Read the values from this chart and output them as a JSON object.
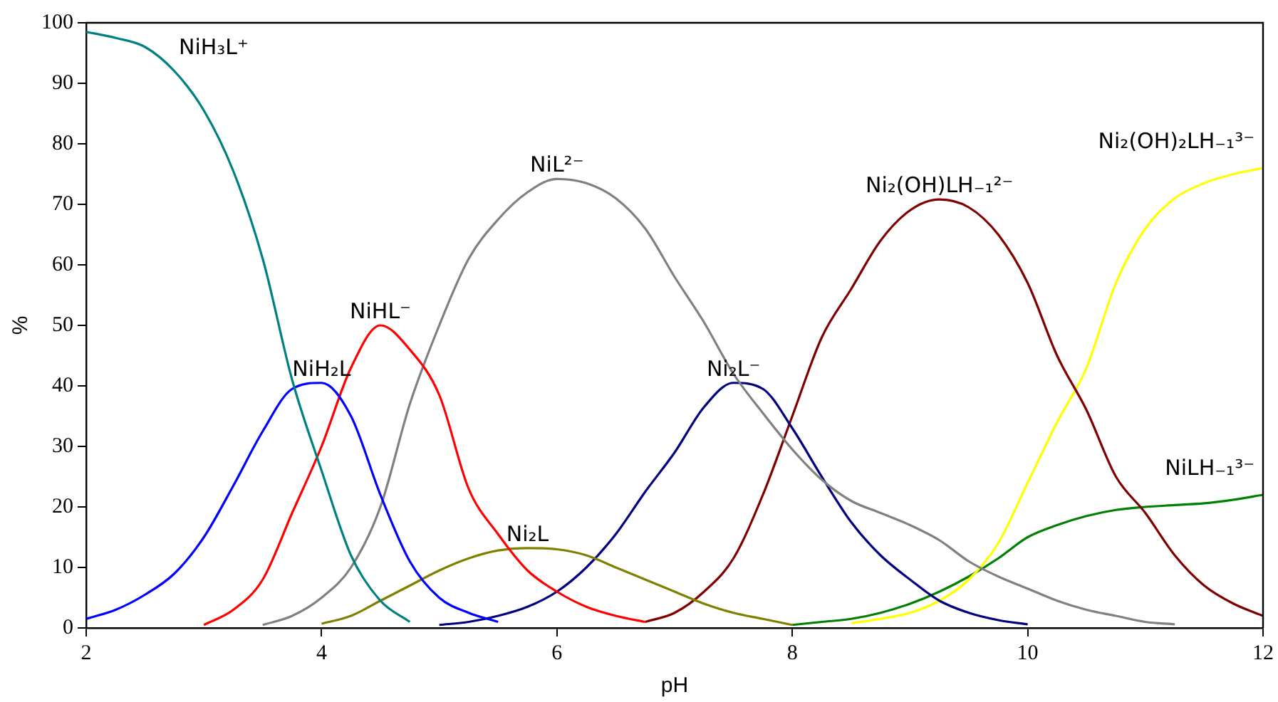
{
  "chart_data": {
    "type": "line",
    "xlabel": "pH",
    "ylabel": "%",
    "xlim": [
      2,
      12
    ],
    "ylim": [
      0,
      100
    ],
    "xticks": [
      2,
      4,
      6,
      8,
      10,
      12
    ],
    "yticks": [
      0,
      10,
      20,
      30,
      40,
      50,
      60,
      70,
      80,
      90,
      100
    ],
    "series": [
      {
        "name": "NiH₃L⁺",
        "color": "#008080",
        "x": [
          2,
          2.25,
          2.5,
          2.75,
          3,
          3.25,
          3.5,
          3.75,
          4,
          4.25,
          4.5,
          4.75
        ],
        "values": [
          98.5,
          97.5,
          96,
          92,
          85.5,
          75.5,
          61,
          41,
          26,
          12,
          4.5,
          1
        ]
      },
      {
        "name": "NiH₂L",
        "color": "#0000ff",
        "x": [
          2,
          2.25,
          2.5,
          2.75,
          3,
          3.25,
          3.5,
          3.75,
          4,
          4.25,
          4.5,
          4.75,
          5,
          5.25,
          5.5
        ],
        "values": [
          1.5,
          3,
          5.5,
          9,
          15,
          23.5,
          32.5,
          39.5,
          40.5,
          35,
          22,
          11,
          5,
          2.5,
          1
        ]
      },
      {
        "name": "NiHL⁻",
        "color": "#ff0000",
        "x": [
          3,
          3.25,
          3.5,
          3.75,
          4,
          4.25,
          4.5,
          4.75,
          5,
          5.25,
          5.5,
          5.75,
          6,
          6.25,
          6.5,
          6.75
        ],
        "values": [
          0.5,
          3,
          8,
          19,
          30,
          43,
          50,
          46,
          38.5,
          23,
          15.5,
          9.5,
          6,
          3.5,
          2,
          1
        ]
      },
      {
        "name": "NiL²⁻",
        "color": "#808080",
        "x": [
          3.5,
          3.75,
          4,
          4.25,
          4.5,
          4.75,
          5,
          5.25,
          5.5,
          5.75,
          6,
          6.25,
          6.5,
          6.75,
          7,
          7.25,
          7.5,
          7.75,
          8,
          8.25,
          8.5,
          8.75,
          9,
          9.25,
          9.5,
          9.75,
          10,
          10.25,
          10.5,
          10.75,
          11,
          11.25
        ],
        "values": [
          0.5,
          2,
          5,
          10,
          20,
          37,
          50,
          61,
          67.5,
          72,
          74.2,
          73.5,
          71,
          66,
          58,
          50.5,
          42,
          35.5,
          29.5,
          24.5,
          21,
          19,
          17,
          14.5,
          11,
          8.5,
          6.5,
          4.5,
          3,
          2,
          1,
          0.6
        ]
      },
      {
        "name": "Ni₂L",
        "color": "#808000",
        "x": [
          4,
          4.25,
          4.5,
          4.75,
          5,
          5.25,
          5.5,
          5.75,
          6,
          6.25,
          6.5,
          6.75,
          7,
          7.25,
          7.5,
          7.75,
          8
        ],
        "values": [
          0.7,
          2,
          4.5,
          7,
          9.5,
          11.5,
          12.8,
          13.2,
          13,
          12,
          10,
          8,
          6,
          4,
          2.5,
          1.5,
          0.5
        ]
      },
      {
        "name": "Ni₂L⁻",
        "color": "#000080",
        "x": [
          5,
          5.25,
          5.5,
          5.75,
          6,
          6.25,
          6.5,
          6.75,
          7,
          7.25,
          7.5,
          7.75,
          8,
          8.25,
          8.5,
          8.75,
          9,
          9.25,
          9.5,
          9.75,
          10
        ],
        "values": [
          0.5,
          1,
          2,
          3.5,
          6,
          10,
          15.5,
          22.5,
          29,
          36.5,
          40.5,
          39.5,
          33,
          25,
          17.5,
          12,
          8,
          4.5,
          2.5,
          1.3,
          0.6
        ]
      },
      {
        "name": "Ni₂(OH)LH₋₁²⁻",
        "color": "#800000",
        "x": [
          6.75,
          7,
          7.25,
          7.5,
          7.75,
          8,
          8.25,
          8.5,
          8.75,
          9,
          9.25,
          9.5,
          9.75,
          10,
          10.25,
          10.5,
          10.75,
          11,
          11.25,
          11.5,
          11.75,
          12
        ],
        "values": [
          1,
          2.5,
          6,
          11.5,
          22,
          35,
          48,
          56,
          64,
          69,
          70.8,
          69.5,
          65,
          57,
          45,
          36,
          25,
          19,
          12,
          7,
          4,
          2
        ]
      },
      {
        "name": "Ni₂(OH)₂LH₋₁³⁻",
        "color": "#ffff00",
        "x": [
          8.5,
          8.75,
          9,
          9.25,
          9.5,
          9.75,
          10,
          10.25,
          10.5,
          10.75,
          11,
          11.25,
          11.5,
          11.75,
          12
        ],
        "values": [
          0.8,
          1.5,
          2.5,
          4.5,
          8,
          14,
          24,
          34,
          43,
          57,
          66,
          71,
          73.5,
          75,
          76
        ]
      },
      {
        "name": "NiLH₋₁³⁻",
        "color": "#008000",
        "x": [
          8,
          8.25,
          8.5,
          8.75,
          9,
          9.25,
          9.5,
          9.75,
          10,
          10.25,
          10.5,
          10.75,
          11,
          11.25,
          11.5,
          11.75,
          12
        ],
        "values": [
          0.5,
          1,
          1.5,
          2.5,
          4,
          6,
          8.5,
          11.5,
          15,
          17,
          18.5,
          19.5,
          20,
          20.3,
          20.6,
          21.2,
          22
        ]
      }
    ]
  }
}
